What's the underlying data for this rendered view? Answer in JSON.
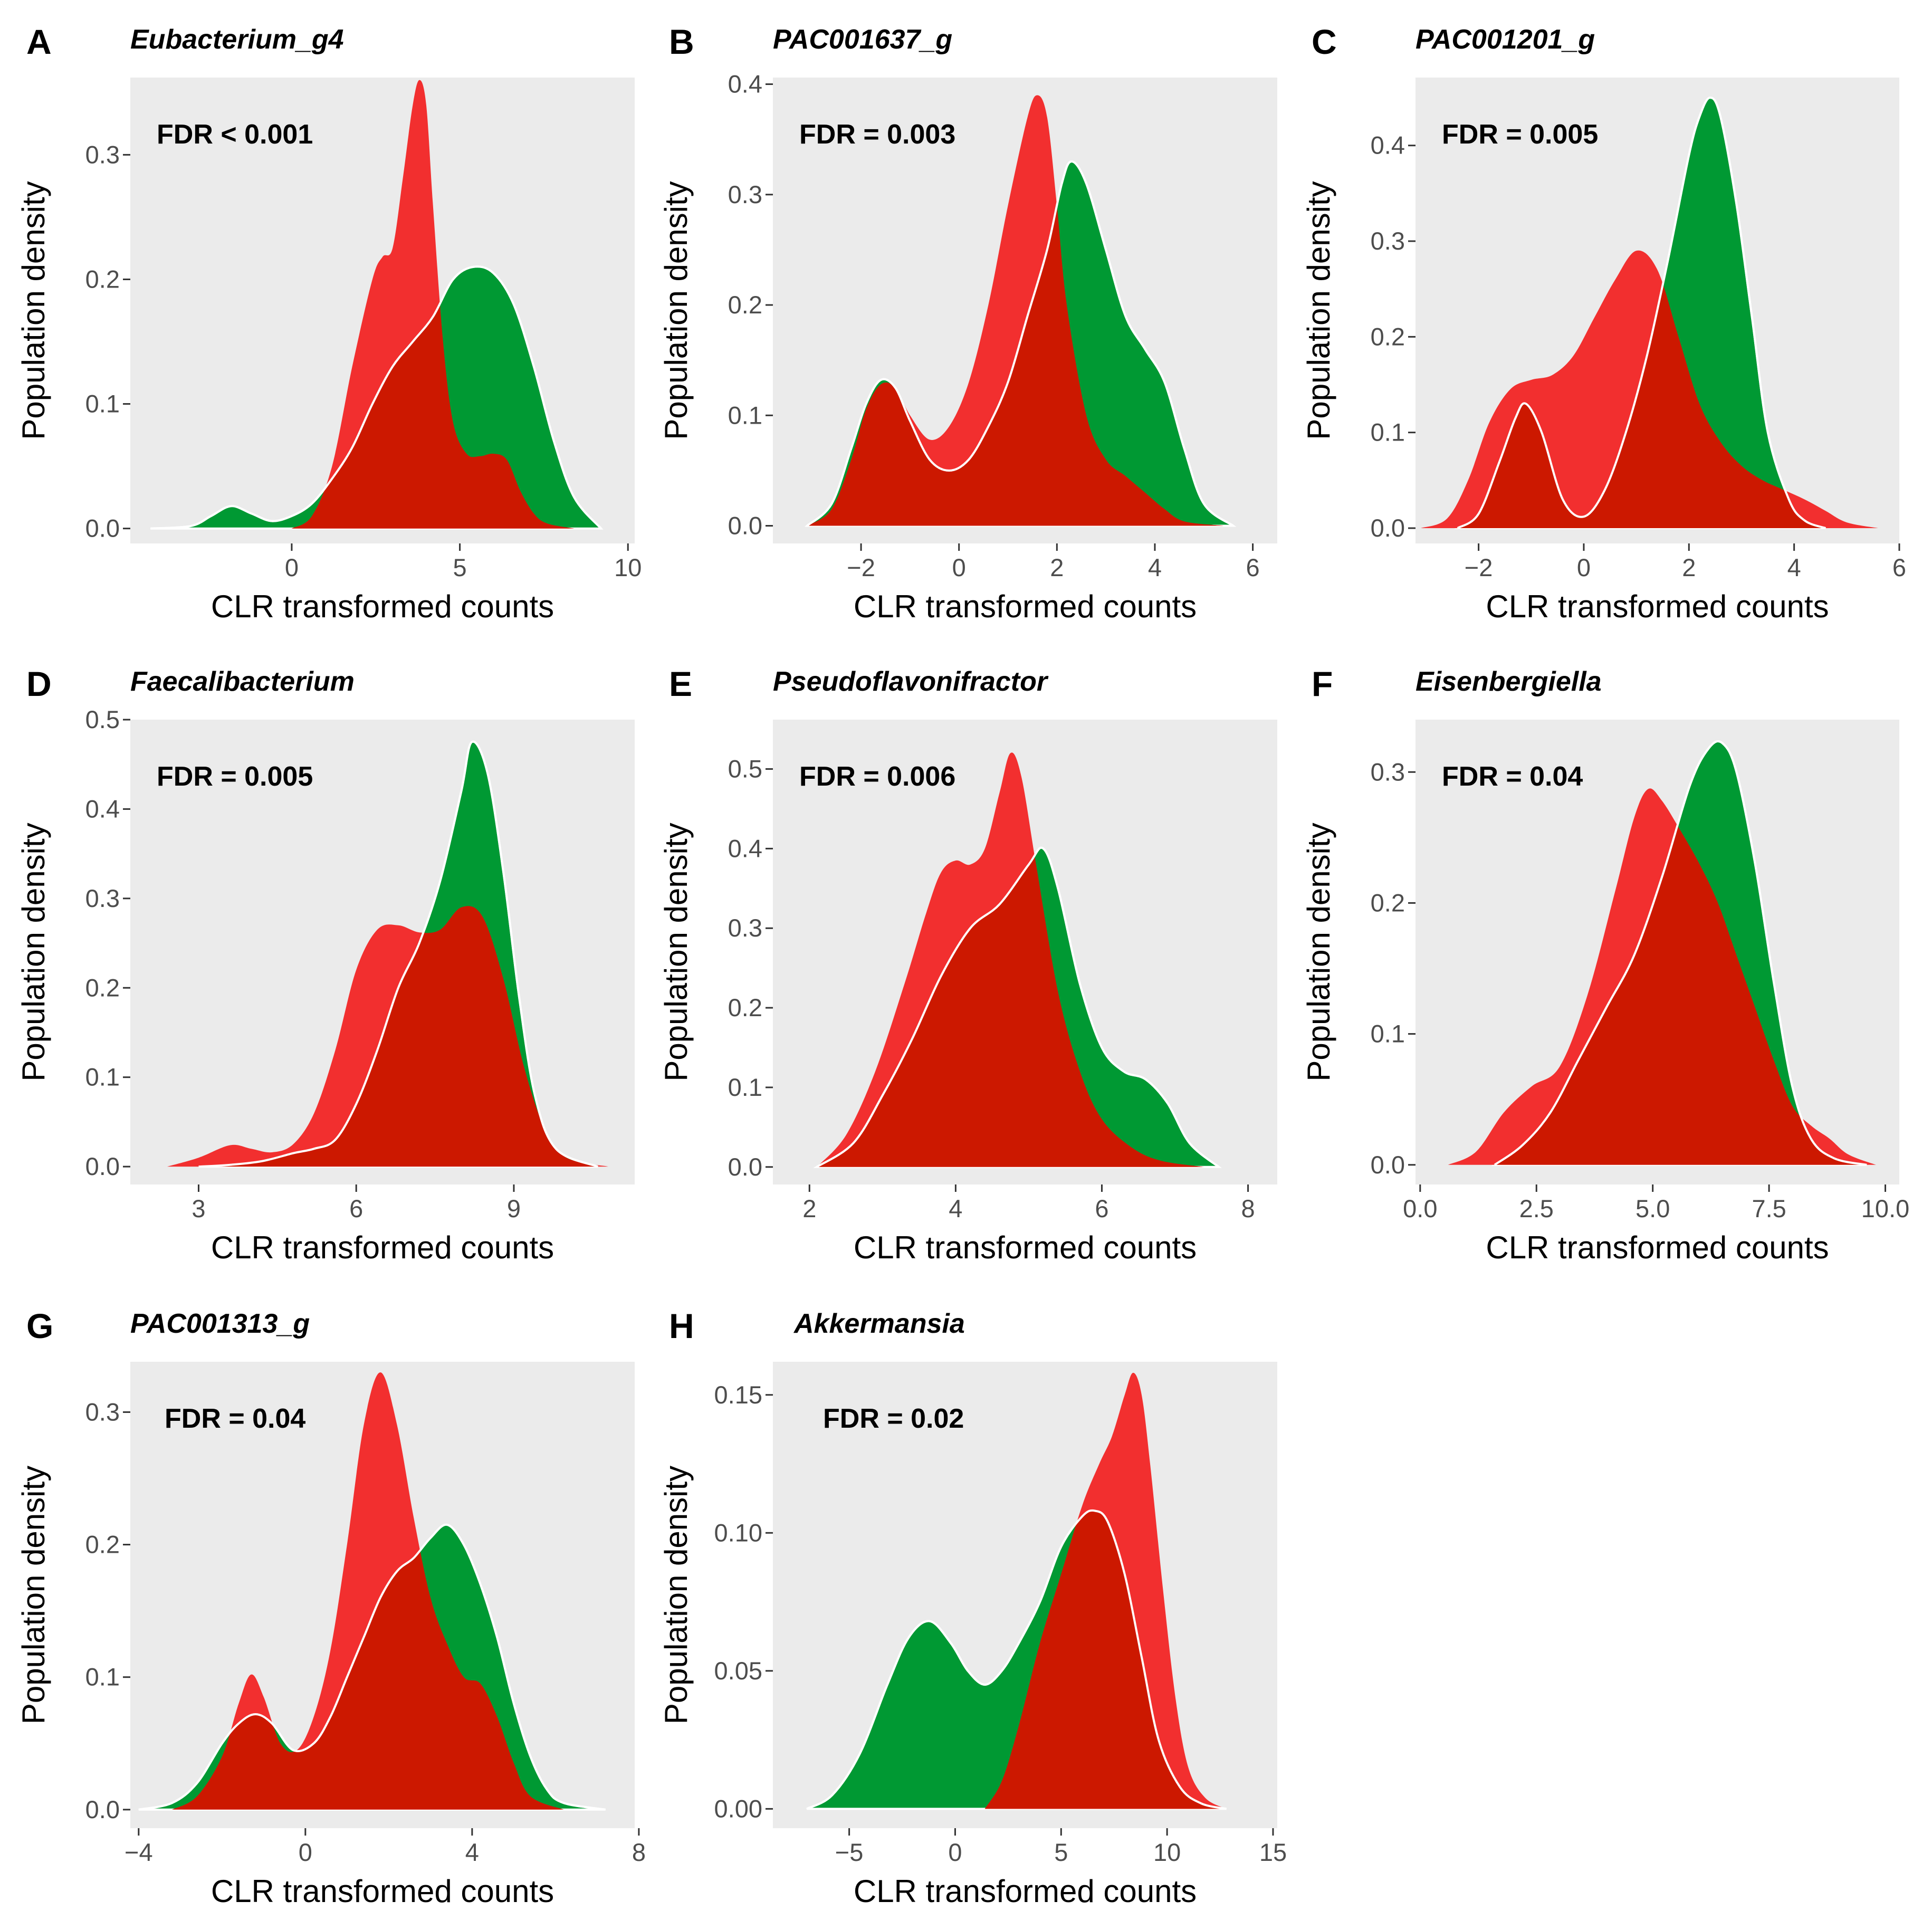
{
  "colors": {
    "green": "#009933",
    "red": "#f21e1e",
    "overlap": "#cc1800",
    "panel_background": "#ebebeb"
  },
  "chart_data": [
    {
      "letter": "A",
      "title": "Eubacterium_g4",
      "type": "density",
      "fdr": "FDR < 0.001",
      "xlabel": "CLR transformed counts",
      "ylabel": "Population density",
      "xlim": [
        -4.8,
        10.2
      ],
      "ylim": [
        -0.012,
        0.362
      ],
      "xticks": [
        0,
        5,
        10
      ],
      "xtick_labels": [
        "0",
        "5",
        "10"
      ],
      "yticks": [
        0.0,
        0.1,
        0.2,
        0.3
      ],
      "ytick_labels": [
        "0.0",
        "0.1",
        "0.2",
        "0.3"
      ],
      "series": [
        {
          "name": "green",
          "x": [
            -4.2,
            -3,
            -2.4,
            -1.8,
            -1.2,
            -0.6,
            0,
            0.6,
            1.2,
            1.8,
            2.4,
            3,
            3.6,
            4.2,
            4.8,
            5.4,
            6,
            6.6,
            7.2,
            7.8,
            8.4,
            9.2
          ],
          "y": [
            0,
            0.002,
            0.01,
            0.018,
            0.012,
            0.006,
            0.01,
            0.02,
            0.04,
            0.065,
            0.1,
            0.13,
            0.15,
            0.17,
            0.2,
            0.21,
            0.205,
            0.18,
            0.13,
            0.07,
            0.025,
            0
          ]
        },
        {
          "name": "red",
          "x": [
            0,
            0.6,
            1.2,
            1.8,
            2.4,
            2.7,
            3,
            3.3,
            3.6,
            3.8,
            4,
            4.2,
            4.5,
            4.8,
            5.2,
            5.6,
            6,
            6.4,
            6.8,
            7.2,
            7.6,
            8.4
          ],
          "y": [
            0,
            0.01,
            0.05,
            0.13,
            0.2,
            0.218,
            0.225,
            0.28,
            0.34,
            0.36,
            0.34,
            0.26,
            0.15,
            0.085,
            0.06,
            0.058,
            0.06,
            0.055,
            0.03,
            0.012,
            0.004,
            0
          ]
        }
      ]
    },
    {
      "letter": "B",
      "title": "PAC001637_g",
      "type": "density",
      "fdr": "FDR = 0.003",
      "xlabel": "CLR transformed counts",
      "ylabel": "Population density",
      "xlim": [
        -3.8,
        6.5
      ],
      "ylim": [
        -0.016,
        0.406
      ],
      "xticks": [
        -2,
        0,
        2,
        4,
        6
      ],
      "xtick_labels": [
        "−2",
        "0",
        "2",
        "4",
        "6"
      ],
      "yticks": [
        0.0,
        0.1,
        0.2,
        0.3,
        0.4
      ],
      "ytick_labels": [
        "0.0",
        "0.1",
        "0.2",
        "0.3",
        "0.4"
      ],
      "series": [
        {
          "name": "green",
          "x": [
            -3.1,
            -2.6,
            -2.2,
            -1.9,
            -1.6,
            -1.3,
            -1,
            -0.6,
            -0.2,
            0.2,
            0.6,
            1,
            1.4,
            1.8,
            2.1,
            2.3,
            2.6,
            3,
            3.4,
            3.8,
            4.2,
            4.6,
            5,
            5.6
          ],
          "y": [
            0,
            0.02,
            0.07,
            0.11,
            0.132,
            0.125,
            0.095,
            0.06,
            0.05,
            0.06,
            0.09,
            0.13,
            0.19,
            0.25,
            0.31,
            0.33,
            0.31,
            0.25,
            0.19,
            0.16,
            0.13,
            0.07,
            0.02,
            0
          ]
        },
        {
          "name": "red",
          "x": [
            -3.1,
            -2.6,
            -2.2,
            -1.9,
            -1.6,
            -1.3,
            -1,
            -0.6,
            -0.2,
            0.2,
            0.6,
            1,
            1.4,
            1.6,
            1.8,
            2,
            2.2,
            2.6,
            3,
            3.4,
            3.8,
            4.2,
            4.6,
            5.4
          ],
          "y": [
            0,
            0.015,
            0.06,
            0.105,
            0.128,
            0.125,
            0.1,
            0.078,
            0.09,
            0.13,
            0.2,
            0.29,
            0.37,
            0.39,
            0.37,
            0.29,
            0.2,
            0.1,
            0.06,
            0.045,
            0.03,
            0.015,
            0.004,
            0
          ]
        }
      ]
    },
    {
      "letter": "C",
      "title": "PAC001201_g",
      "type": "density",
      "fdr": "FDR = 0.005",
      "xlabel": "CLR transformed counts",
      "ylabel": "Population density",
      "xlim": [
        -3.2,
        6
      ],
      "ylim": [
        -0.016,
        0.471
      ],
      "xticks": [
        -2,
        0,
        2,
        4,
        6
      ],
      "xtick_labels": [
        "−2",
        "0",
        "2",
        "4",
        "6"
      ],
      "yticks": [
        0.0,
        0.1,
        0.2,
        0.3,
        0.4
      ],
      "ytick_labels": [
        "0.0",
        "0.1",
        "0.2",
        "0.3",
        "0.4"
      ],
      "series": [
        {
          "name": "green",
          "x": [
            -2.4,
            -2,
            -1.6,
            -1.3,
            -1.1,
            -0.8,
            -0.4,
            0,
            0.4,
            0.8,
            1.2,
            1.6,
            2,
            2.2,
            2.4,
            2.6,
            2.9,
            3.2,
            3.5,
            3.9,
            4.2,
            4.6
          ],
          "y": [
            0,
            0.015,
            0.07,
            0.115,
            0.13,
            0.1,
            0.03,
            0.012,
            0.04,
            0.1,
            0.18,
            0.28,
            0.39,
            0.43,
            0.45,
            0.43,
            0.34,
            0.22,
            0.1,
            0.03,
            0.008,
            0
          ]
        },
        {
          "name": "red",
          "x": [
            -3.1,
            -2.6,
            -2.2,
            -1.8,
            -1.4,
            -1,
            -0.6,
            -0.2,
            0.2,
            0.6,
            1,
            1.4,
            1.8,
            2.2,
            2.6,
            3,
            3.4,
            3.8,
            4.2,
            4.6,
            5,
            5.6
          ],
          "y": [
            0,
            0.01,
            0.05,
            0.11,
            0.145,
            0.155,
            0.16,
            0.18,
            0.22,
            0.26,
            0.29,
            0.27,
            0.2,
            0.13,
            0.09,
            0.065,
            0.05,
            0.04,
            0.03,
            0.018,
            0.006,
            0
          ]
        }
      ]
    },
    {
      "letter": "D",
      "title": "Faecalibacterium",
      "type": "density",
      "fdr": "FDR = 0.005",
      "xlabel": "CLR transformed counts",
      "ylabel": "Population density",
      "xlim": [
        1.7,
        11.3
      ],
      "ylim": [
        -0.02,
        0.5
      ],
      "xticks": [
        3,
        6,
        9
      ],
      "xtick_labels": [
        "3",
        "6",
        "9"
      ],
      "yticks": [
        0.0,
        0.1,
        0.2,
        0.3,
        0.4,
        0.5
      ],
      "ytick_labels": [
        "0.0",
        "0.1",
        "0.2",
        "0.3",
        "0.4",
        "0.5"
      ],
      "series": [
        {
          "name": "green",
          "x": [
            3,
            3.6,
            4.2,
            4.8,
            5.2,
            5.6,
            6,
            6.4,
            6.8,
            7.2,
            7.6,
            8,
            8.2,
            8.5,
            8.8,
            9.1,
            9.4,
            9.8,
            10.6
          ],
          "y": [
            0,
            0.002,
            0.006,
            0.015,
            0.02,
            0.03,
            0.07,
            0.13,
            0.2,
            0.25,
            0.32,
            0.42,
            0.475,
            0.44,
            0.33,
            0.19,
            0.08,
            0.02,
            0
          ]
        },
        {
          "name": "red",
          "x": [
            2.4,
            3,
            3.6,
            4,
            4.4,
            4.8,
            5.2,
            5.6,
            6,
            6.4,
            6.8,
            7.2,
            7.6,
            8,
            8.4,
            8.8,
            9.2,
            9.6,
            10,
            10.8
          ],
          "y": [
            0,
            0.01,
            0.024,
            0.02,
            0.016,
            0.025,
            0.06,
            0.13,
            0.22,
            0.265,
            0.27,
            0.262,
            0.265,
            0.29,
            0.28,
            0.21,
            0.11,
            0.04,
            0.01,
            0
          ]
        }
      ]
    },
    {
      "letter": "E",
      "title": "Pseudoflavonifractor",
      "type": "density",
      "fdr": "FDR = 0.006",
      "xlabel": "CLR transformed counts",
      "ylabel": "Population density",
      "xlim": [
        1.5,
        8.4
      ],
      "ylim": [
        -0.022,
        0.562
      ],
      "xticks": [
        2,
        4,
        6,
        8
      ],
      "xtick_labels": [
        "2",
        "4",
        "6",
        "8"
      ],
      "yticks": [
        0.0,
        0.1,
        0.2,
        0.3,
        0.4,
        0.5
      ],
      "ytick_labels": [
        "0.0",
        "0.1",
        "0.2",
        "0.3",
        "0.4",
        "0.5"
      ],
      "series": [
        {
          "name": "green",
          "x": [
            2.1,
            2.6,
            3,
            3.4,
            3.8,
            4.2,
            4.6,
            5,
            5.2,
            5.4,
            5.7,
            6,
            6.3,
            6.6,
            6.9,
            7.2,
            7.6
          ],
          "y": [
            0,
            0.03,
            0.09,
            0.16,
            0.24,
            0.3,
            0.33,
            0.38,
            0.4,
            0.35,
            0.23,
            0.15,
            0.12,
            0.11,
            0.08,
            0.03,
            0
          ]
        },
        {
          "name": "red",
          "x": [
            2.1,
            2.5,
            2.9,
            3.3,
            3.6,
            3.8,
            4,
            4.2,
            4.4,
            4.6,
            4.75,
            4.9,
            5.1,
            5.4,
            5.7,
            6,
            6.4,
            6.8,
            7.4
          ],
          "y": [
            0,
            0.04,
            0.12,
            0.23,
            0.32,
            0.37,
            0.385,
            0.38,
            0.4,
            0.47,
            0.52,
            0.49,
            0.38,
            0.22,
            0.12,
            0.06,
            0.025,
            0.008,
            0
          ]
        }
      ]
    },
    {
      "letter": "F",
      "title": "Eisenbergiella",
      "type": "density",
      "fdr": "FDR = 0.04",
      "xlabel": "CLR transformed counts",
      "ylabel": "Population density",
      "xlim": [
        -0.1,
        10.3
      ],
      "ylim": [
        -0.015,
        0.34
      ],
      "xticks": [
        0.0,
        2.5,
        5.0,
        7.5,
        10.0
      ],
      "xtick_labels": [
        "0.0",
        "2.5",
        "5.0",
        "7.5",
        "10.0"
      ],
      "yticks": [
        0.0,
        0.1,
        0.2,
        0.3
      ],
      "ytick_labels": [
        "0.0",
        "0.1",
        "0.2",
        "0.3"
      ],
      "series": [
        {
          "name": "green",
          "x": [
            1.6,
            2.2,
            2.8,
            3.4,
            4,
            4.6,
            5.2,
            5.8,
            6.2,
            6.5,
            6.8,
            7.2,
            7.6,
            8,
            8.4,
            8.9,
            9.6
          ],
          "y": [
            0,
            0.015,
            0.04,
            0.08,
            0.12,
            0.16,
            0.22,
            0.29,
            0.318,
            0.322,
            0.3,
            0.23,
            0.14,
            0.06,
            0.02,
            0.005,
            0
          ]
        },
        {
          "name": "red",
          "x": [
            0.6,
            1.2,
            1.8,
            2.4,
            3,
            3.6,
            4.2,
            4.6,
            4.9,
            5.2,
            5.6,
            6,
            6.4,
            6.8,
            7.2,
            7.6,
            8,
            8.4,
            8.8,
            9.2,
            9.8
          ],
          "y": [
            0,
            0.01,
            0.04,
            0.06,
            0.075,
            0.13,
            0.21,
            0.265,
            0.287,
            0.278,
            0.255,
            0.23,
            0.2,
            0.16,
            0.12,
            0.08,
            0.045,
            0.03,
            0.02,
            0.008,
            0
          ]
        }
      ]
    },
    {
      "letter": "G",
      "title": "PAC001313_g",
      "type": "density",
      "fdr": "FDR = 0.04",
      "xlabel": "CLR transformed counts",
      "ylabel": "Population density",
      "xlim": [
        -4.2,
        7.9
      ],
      "ylim": [
        -0.014,
        0.338
      ],
      "xticks": [
        -4,
        0,
        4,
        8
      ],
      "xtick_labels": [
        "−4",
        "0",
        "4",
        "8"
      ],
      "yticks": [
        0.0,
        0.1,
        0.2,
        0.3
      ],
      "ytick_labels": [
        "0.0",
        "0.1",
        "0.2",
        "0.3"
      ],
      "series": [
        {
          "name": "green",
          "x": [
            -4,
            -3.2,
            -2.6,
            -2,
            -1.6,
            -1.2,
            -0.8,
            -0.3,
            0.2,
            0.6,
            1,
            1.4,
            1.8,
            2.2,
            2.6,
            3,
            3.4,
            3.8,
            4.2,
            4.6,
            5,
            5.4,
            5.8,
            6.2,
            7.2
          ],
          "y": [
            0,
            0.005,
            0.02,
            0.05,
            0.065,
            0.072,
            0.065,
            0.045,
            0.05,
            0.07,
            0.1,
            0.13,
            0.16,
            0.18,
            0.19,
            0.205,
            0.215,
            0.2,
            0.17,
            0.13,
            0.08,
            0.04,
            0.015,
            0.005,
            0
          ]
        },
        {
          "name": "red",
          "x": [
            -3.2,
            -2.6,
            -2,
            -1.6,
            -1.3,
            -1,
            -0.6,
            -0.2,
            0.2,
            0.6,
            1,
            1.4,
            1.8,
            2.2,
            2.6,
            3,
            3.4,
            3.8,
            4.2,
            4.6,
            5,
            5.4,
            6.2
          ],
          "y": [
            0,
            0.01,
            0.04,
            0.08,
            0.102,
            0.085,
            0.05,
            0.045,
            0.07,
            0.12,
            0.2,
            0.29,
            0.33,
            0.29,
            0.22,
            0.16,
            0.125,
            0.1,
            0.095,
            0.07,
            0.035,
            0.01,
            0
          ]
        }
      ]
    },
    {
      "letter": "H",
      "title": "Akkermansia",
      "type": "density",
      "fdr": "FDR = 0.02",
      "xlabel": "CLR transformed counts",
      "ylabel": "Population density",
      "xlim": [
        -8.6,
        15.2
      ],
      "ylim": [
        -0.007,
        0.162
      ],
      "xticks": [
        -5,
        0,
        5,
        10,
        15
      ],
      "xtick_labels": [
        "−5",
        "0",
        "5",
        "10",
        "15"
      ],
      "yticks": [
        0.0,
        0.05,
        0.1,
        0.15
      ],
      "ytick_labels": [
        "0.00",
        "0.05",
        "0.10",
        "0.15"
      ],
      "series": [
        {
          "name": "green",
          "x": [
            -7,
            -5.8,
            -4.5,
            -3.2,
            -2.2,
            -1.2,
            -0.2,
            0.6,
            1.4,
            2.2,
            3,
            4,
            5,
            6,
            6.6,
            7.2,
            8,
            8.8,
            9.6,
            10.6,
            11.6,
            12.8
          ],
          "y": [
            0,
            0.005,
            0.02,
            0.045,
            0.062,
            0.068,
            0.06,
            0.05,
            0.045,
            0.05,
            0.06,
            0.075,
            0.095,
            0.106,
            0.108,
            0.104,
            0.085,
            0.055,
            0.025,
            0.008,
            0.002,
            0
          ]
        },
        {
          "name": "red",
          "x": [
            1.4,
            2.2,
            3,
            4,
            5,
            6,
            6.8,
            7.4,
            8,
            8.4,
            8.8,
            9.2,
            9.8,
            10.4,
            11,
            11.8,
            12.8
          ],
          "y": [
            0,
            0.01,
            0.03,
            0.06,
            0.085,
            0.11,
            0.125,
            0.135,
            0.15,
            0.158,
            0.15,
            0.125,
            0.08,
            0.04,
            0.015,
            0.004,
            0
          ]
        }
      ]
    }
  ]
}
